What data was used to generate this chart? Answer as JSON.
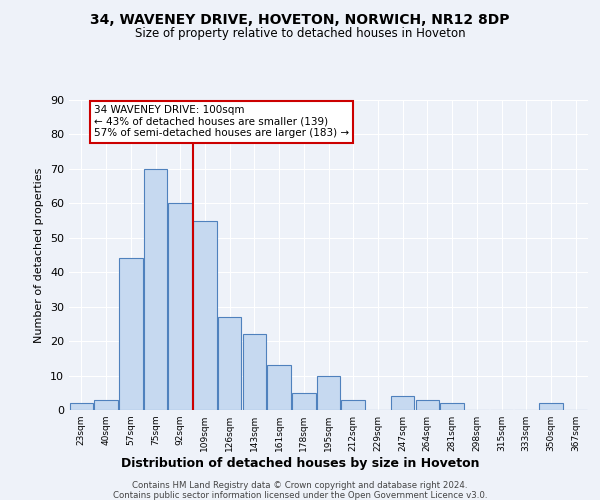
{
  "title1": "34, WAVENEY DRIVE, HOVETON, NORWICH, NR12 8DP",
  "title2": "Size of property relative to detached houses in Hoveton",
  "xlabel": "Distribution of detached houses by size in Hoveton",
  "ylabel": "Number of detached properties",
  "bin_labels": [
    "23sqm",
    "40sqm",
    "57sqm",
    "75sqm",
    "92sqm",
    "109sqm",
    "126sqm",
    "143sqm",
    "161sqm",
    "178sqm",
    "195sqm",
    "212sqm",
    "229sqm",
    "247sqm",
    "264sqm",
    "281sqm",
    "298sqm",
    "315sqm",
    "333sqm",
    "350sqm",
    "367sqm"
  ],
  "bar_heights": [
    2,
    3,
    44,
    70,
    60,
    55,
    27,
    22,
    13,
    5,
    10,
    3,
    0,
    4,
    3,
    2,
    0,
    0,
    0,
    2,
    0
  ],
  "bar_color": "#c6d9f0",
  "bar_edge_color": "#4f81bd",
  "vline_x": 4.5,
  "vline_color": "#cc0000",
  "annotation_title": "34 WAVENEY DRIVE: 100sqm",
  "annotation_line1": "← 43% of detached houses are smaller (139)",
  "annotation_line2": "57% of semi-detached houses are larger (183) →",
  "annotation_box_color": "#cc0000",
  "footnote1": "Contains HM Land Registry data © Crown copyright and database right 2024.",
  "footnote2": "Contains public sector information licensed under the Open Government Licence v3.0.",
  "ylim": [
    0,
    90
  ],
  "yticks": [
    0,
    10,
    20,
    30,
    40,
    50,
    60,
    70,
    80,
    90
  ],
  "bg_color": "#eef2f9",
  "grid_color": "#ffffff"
}
